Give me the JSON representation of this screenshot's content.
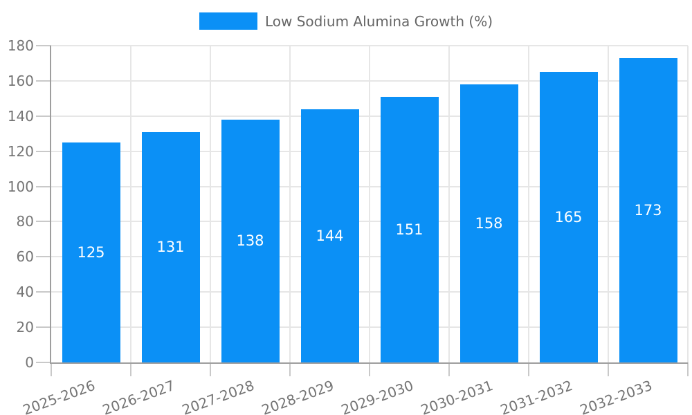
{
  "chart_data": {
    "type": "bar",
    "legend_label": "Low Sodium Alumina Growth (%)",
    "categories": [
      "2025-2026",
      "2026-2027",
      "2027-2028",
      "2028-2029",
      "2029-2030",
      "2030-2031",
      "2031-2032",
      "2032-2033"
    ],
    "values": [
      125,
      131,
      138,
      144,
      151,
      158,
      165,
      173
    ],
    "ylim": [
      0,
      180
    ],
    "ytick_step": 20,
    "ytick_labels": [
      "0",
      "20",
      "40",
      "60",
      "80",
      "100",
      "120",
      "140",
      "160",
      "180"
    ],
    "x_label_rotation_deg": -20,
    "grid": true,
    "legend_position": "top-center",
    "value_labels_inside_bars": true,
    "colors": {
      "bar": "#0B90F6",
      "grid": "#e6e6e6",
      "tick": "#c9c9c9",
      "axis": "#9e9e9e",
      "axis_text": "#757575",
      "legend_text": "#666666",
      "value_label": "#ffffff",
      "background": "#ffffff"
    }
  }
}
